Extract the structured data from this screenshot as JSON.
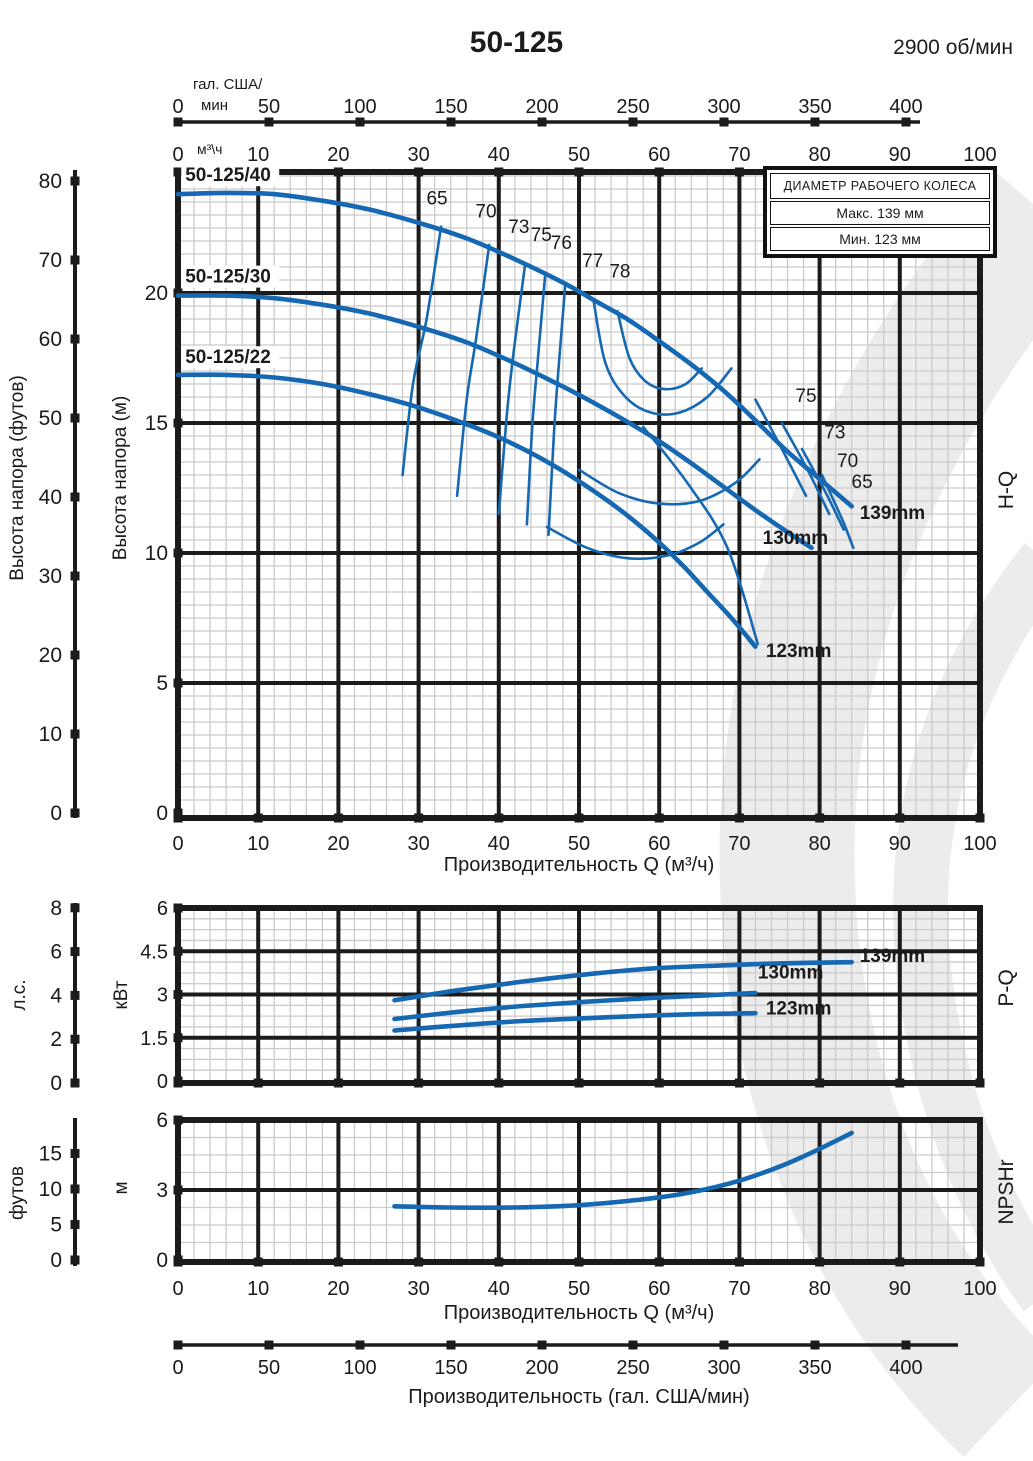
{
  "page_title": "50-125",
  "speed": "2900 об/мин",
  "impeller_legend": {
    "header": "ДИАМЕТР РАБОЧЕГО КОЛЕСА",
    "max": "Макс. 139 мм",
    "min": "Мин. 123 мм"
  },
  "top_axis": {
    "unit_line1": "гал. США/",
    "unit_line2": "мин",
    "ticks": [
      0,
      50,
      100,
      150,
      200,
      250,
      300,
      350,
      400
    ]
  },
  "m3h_axis": {
    "unit": "м³\\ч",
    "ticks": [
      0,
      10,
      20,
      30,
      40,
      50,
      60,
      70,
      80,
      90,
      100
    ]
  },
  "hq": {
    "section": "H-Q",
    "left_axis_title": "Высота напора (футов)",
    "left_ticks": [
      0,
      10,
      20,
      30,
      40,
      50,
      60,
      70,
      80
    ],
    "m_axis_title": "Высота напора (м)",
    "m_ticks": [
      0,
      5,
      10,
      15,
      20
    ],
    "x_ticks": [
      0,
      10,
      20,
      30,
      40,
      50,
      60,
      70,
      80,
      90,
      100
    ],
    "x_title": "Производительность Q (м³/ч)"
  },
  "pq": {
    "section": "P-Q",
    "hp_title": "л.с.",
    "hp_ticks": [
      0,
      2,
      4,
      6,
      8
    ],
    "kw_title": "кВт",
    "kw_ticks": [
      0,
      1.5,
      3,
      4.5,
      6
    ],
    "x_ticks": [
      0,
      10,
      20,
      30,
      40,
      50,
      60,
      70,
      80,
      90,
      100
    ]
  },
  "npsh": {
    "section": "NPSHr",
    "ft_title": "футов",
    "ft_ticks": [
      0,
      5,
      10,
      15
    ],
    "m_title": "м",
    "m_ticks": [
      0,
      3,
      6
    ],
    "x_ticks": [
      0,
      10,
      20,
      30,
      40,
      50,
      60,
      70,
      80,
      90,
      100
    ],
    "x_title": "Производительность Q (м³/ч)"
  },
  "gal_bottom_axis": {
    "ticks": [
      0,
      50,
      100,
      150,
      200,
      250,
      300,
      350,
      400
    ],
    "title": "Производительность (гал. США/мин)"
  },
  "colors": {
    "curve": "#1568b1",
    "frame": "#1b1b1b",
    "minor_grid": "#cbcbcb",
    "watermark": "#ececec"
  },
  "chart_data": [
    {
      "type": "line",
      "name": "H-Q",
      "title": "Напорные характеристики 50-125, 2900 об/мин",
      "xlabel": "Производительность Q (м³/ч)",
      "ylabel": "Высота напора (м)",
      "xlim": [
        0,
        100
      ],
      "ylim_m": [
        0,
        24.6
      ],
      "ylim_ft": [
        0,
        80
      ],
      "series": [
        {
          "name": "50-125/40",
          "impeller": "139mm",
          "label_at": [
            0.9,
            24.3
          ],
          "imp_label_at": [
            85.0,
            11.3
          ],
          "points": [
            [
              0,
              23.8
            ],
            [
              6,
              23.85
            ],
            [
              12,
              23.8
            ],
            [
              18,
              23.55
            ],
            [
              24,
              23.2
            ],
            [
              30,
              22.7
            ],
            [
              36,
              22.1
            ],
            [
              42,
              21.3
            ],
            [
              48,
              20.4
            ],
            [
              52,
              19.7
            ],
            [
              56,
              19.0
            ],
            [
              60,
              18.15
            ],
            [
              64,
              17.25
            ],
            [
              68,
              16.25
            ],
            [
              72,
              15.1
            ],
            [
              76,
              13.9
            ],
            [
              80,
              12.85
            ],
            [
              84,
              11.8
            ]
          ]
        },
        {
          "name": "50-125/30",
          "impeller": "130mm",
          "label_at": [
            0.9,
            20.4
          ],
          "imp_label_at": [
            72.9,
            10.35
          ],
          "points": [
            [
              0,
              19.9
            ],
            [
              6,
              19.9
            ],
            [
              12,
              19.8
            ],
            [
              18,
              19.55
            ],
            [
              24,
              19.2
            ],
            [
              30,
              18.7
            ],
            [
              36,
              18.1
            ],
            [
              42,
              17.3
            ],
            [
              48,
              16.4
            ],
            [
              52,
              15.75
            ],
            [
              56,
              15.05
            ],
            [
              60,
              14.3
            ],
            [
              64,
              13.45
            ],
            [
              68,
              12.55
            ],
            [
              72,
              11.65
            ],
            [
              76,
              10.8
            ],
            [
              79,
              10.2
            ]
          ]
        },
        {
          "name": "50-125/22",
          "impeller": "123mm",
          "label_at": [
            0.9,
            17.3
          ],
          "imp_label_at": [
            73.3,
            6.0
          ],
          "points": [
            [
              0,
              16.85
            ],
            [
              6,
              16.85
            ],
            [
              12,
              16.75
            ],
            [
              18,
              16.5
            ],
            [
              24,
              16.1
            ],
            [
              30,
              15.6
            ],
            [
              36,
              14.95
            ],
            [
              40,
              14.45
            ],
            [
              44,
              13.85
            ],
            [
              48,
              13.15
            ],
            [
              52,
              12.35
            ],
            [
              56,
              11.45
            ],
            [
              60,
              10.4
            ],
            [
              63,
              9.5
            ],
            [
              66,
              8.5
            ],
            [
              69,
              7.5
            ],
            [
              72,
              6.4
            ]
          ]
        }
      ],
      "efficiency_contours": [
        {
          "label": "65",
          "label_at": [
            32.3,
            23.4
          ],
          "points": [
            [
              32.8,
              22.55
            ],
            [
              31,
              19.0
            ],
            [
              29.3,
              16.5
            ],
            [
              28,
              13.0
            ]
          ]
        },
        {
          "label": "70",
          "label_at": [
            38.4,
            22.9
          ],
          "points": [
            [
              38.8,
              21.85
            ],
            [
              37.2,
              18.3
            ],
            [
              36,
              15.9
            ],
            [
              34.8,
              12.2
            ]
          ]
        },
        {
          "label": "73",
          "label_at": [
            42.5,
            22.3
          ],
          "points": [
            [
              43.3,
              21.15
            ],
            [
              41.8,
              17.6
            ],
            [
              41,
              15.3
            ],
            [
              40,
              11.5
            ]
          ]
        },
        {
          "label": "75",
          "label_at": [
            45.3,
            22.0
          ],
          "points": [
            [
              45.8,
              20.75
            ],
            [
              44.8,
              17.2
            ],
            [
              44.2,
              15.0
            ],
            [
              43.5,
              11.1
            ]
          ]
        },
        {
          "label": "76",
          "label_at": [
            47.8,
            21.7
          ],
          "points": [
            [
              48.3,
              20.35
            ],
            [
              47.4,
              16.9
            ],
            [
              46.9,
              14.7
            ],
            [
              46.2,
              10.7
            ]
          ]
        },
        {
          "label": "77",
          "label_at": [
            51.7,
            21.0
          ],
          "points": [
            [
              51.8,
              19.75
            ],
            [
              53.3,
              17.3
            ],
            [
              55.8,
              16.0
            ],
            [
              59,
              15.4
            ],
            [
              62.5,
              15.4
            ],
            [
              66,
              16.0
            ],
            [
              69,
              17.1
            ]
          ]
        },
        {
          "label": "78",
          "label_at": [
            55.1,
            20.6
          ],
          "points": [
            [
              54.8,
              19.3
            ],
            [
              56.3,
              17.5
            ],
            [
              58.3,
              16.6
            ],
            [
              60.8,
              16.3
            ],
            [
              63.3,
              16.5
            ],
            [
              65.3,
              17.1
            ]
          ]
        },
        {
          "label": "",
          "points": [
            [
              50,
              13.2
            ],
            [
              55,
              12.3
            ],
            [
              60,
              11.9
            ],
            [
              65,
              12.0
            ],
            [
              69.5,
              12.7
            ],
            [
              72.5,
              13.6
            ]
          ]
        },
        {
          "label": "",
          "points": [
            [
              46,
              11.0
            ],
            [
              51,
              10.2
            ],
            [
              56,
              9.8
            ],
            [
              61,
              9.9
            ],
            [
              65,
              10.4
            ],
            [
              68,
              11.1
            ]
          ]
        },
        {
          "label": "",
          "points": [
            [
              58,
              14.85
            ],
            [
              63.5,
              12.7
            ],
            [
              68.5,
              10.2
            ],
            [
              72.3,
              6.5
            ]
          ]
        },
        {
          "label": "75",
          "label_at": [
            78.3,
            15.8
          ],
          "points": [
            [
              72,
              15.9
            ],
            [
              75.3,
              14.0
            ],
            [
              78.3,
              12.2
            ]
          ]
        },
        {
          "label": "73",
          "label_at": [
            81.9,
            14.4
          ],
          "points": [
            [
              75.3,
              15.0
            ],
            [
              78.5,
              13.2
            ],
            [
              81.2,
              11.5
            ]
          ]
        },
        {
          "label": "70",
          "label_at": [
            83.5,
            13.3
          ],
          "points": [
            [
              77.8,
              14.0
            ],
            [
              80.8,
              12.3
            ],
            [
              83,
              10.9
            ]
          ]
        },
        {
          "label": "65",
          "label_at": [
            85.3,
            12.5
          ],
          "points": [
            [
              80.3,
              13.0
            ],
            [
              82.8,
              11.3
            ],
            [
              84.2,
              10.2
            ]
          ]
        }
      ]
    },
    {
      "type": "line",
      "name": "P-Q",
      "xlabel": "Производительность Q (м³/ч)",
      "ylabel": "кВт",
      "xlim": [
        0,
        100
      ],
      "ylim_kw": [
        0,
        6
      ],
      "ylim_hp": [
        0,
        8
      ],
      "series": [
        {
          "name": "139mm",
          "label_at": [
            85,
            4.13
          ],
          "points": [
            [
              27,
              2.8
            ],
            [
              35,
              3.15
            ],
            [
              43,
              3.45
            ],
            [
              51,
              3.7
            ],
            [
              59,
              3.9
            ],
            [
              67,
              4.0
            ],
            [
              75,
              4.08
            ],
            [
              84,
              4.12
            ]
          ]
        },
        {
          "name": "130mm",
          "label_at": [
            72.3,
            3.55
          ],
          "points": [
            [
              27,
              2.15
            ],
            [
              35,
              2.4
            ],
            [
              43,
              2.6
            ],
            [
              51,
              2.75
            ],
            [
              59,
              2.88
            ],
            [
              65,
              2.96
            ],
            [
              72,
              3.05
            ]
          ]
        },
        {
          "name": "123mm",
          "label_at": [
            73.3,
            2.3
          ],
          "points": [
            [
              27,
              1.75
            ],
            [
              35,
              1.93
            ],
            [
              43,
              2.08
            ],
            [
              51,
              2.18
            ],
            [
              59,
              2.27
            ],
            [
              65,
              2.32
            ],
            [
              72,
              2.35
            ]
          ]
        }
      ]
    },
    {
      "type": "line",
      "name": "NPSHr",
      "xlabel": "Производительность Q (м³/ч)",
      "ylabel": "м",
      "xlim": [
        0,
        100
      ],
      "ylim_m": [
        0,
        6
      ],
      "ylim_ft": [
        0,
        15
      ],
      "curve": [
        [
          27,
          2.3
        ],
        [
          34,
          2.25
        ],
        [
          42,
          2.25
        ],
        [
          50,
          2.35
        ],
        [
          58,
          2.6
        ],
        [
          64,
          2.9
        ],
        [
          70,
          3.4
        ],
        [
          75,
          4.0
        ],
        [
          79,
          4.6
        ],
        [
          82,
          5.1
        ],
        [
          84,
          5.45
        ]
      ]
    }
  ]
}
